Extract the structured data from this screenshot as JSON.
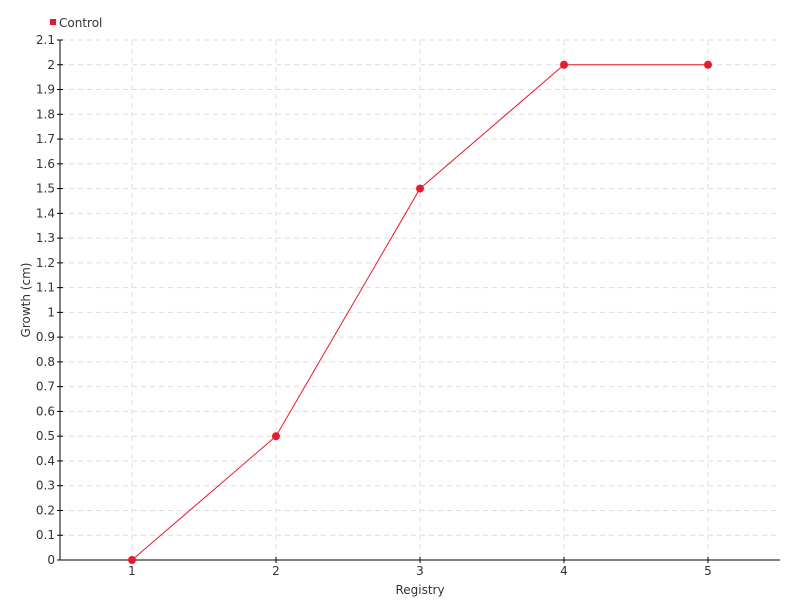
{
  "chart_data": {
    "type": "line",
    "title": "",
    "xlabel": "Registry",
    "ylabel": "Growth (cm)",
    "x": [
      1,
      2,
      3,
      4,
      5
    ],
    "x_tick_labels": [
      "1",
      "2",
      "3",
      "4",
      "5"
    ],
    "series": [
      {
        "name": "Control",
        "values": [
          0,
          0.5,
          1.5,
          2,
          2
        ],
        "color": "#e8192c"
      }
    ],
    "ylim": [
      0,
      2.1
    ],
    "y_tick_step": 0.1,
    "grid": true,
    "legend": "top-left"
  }
}
